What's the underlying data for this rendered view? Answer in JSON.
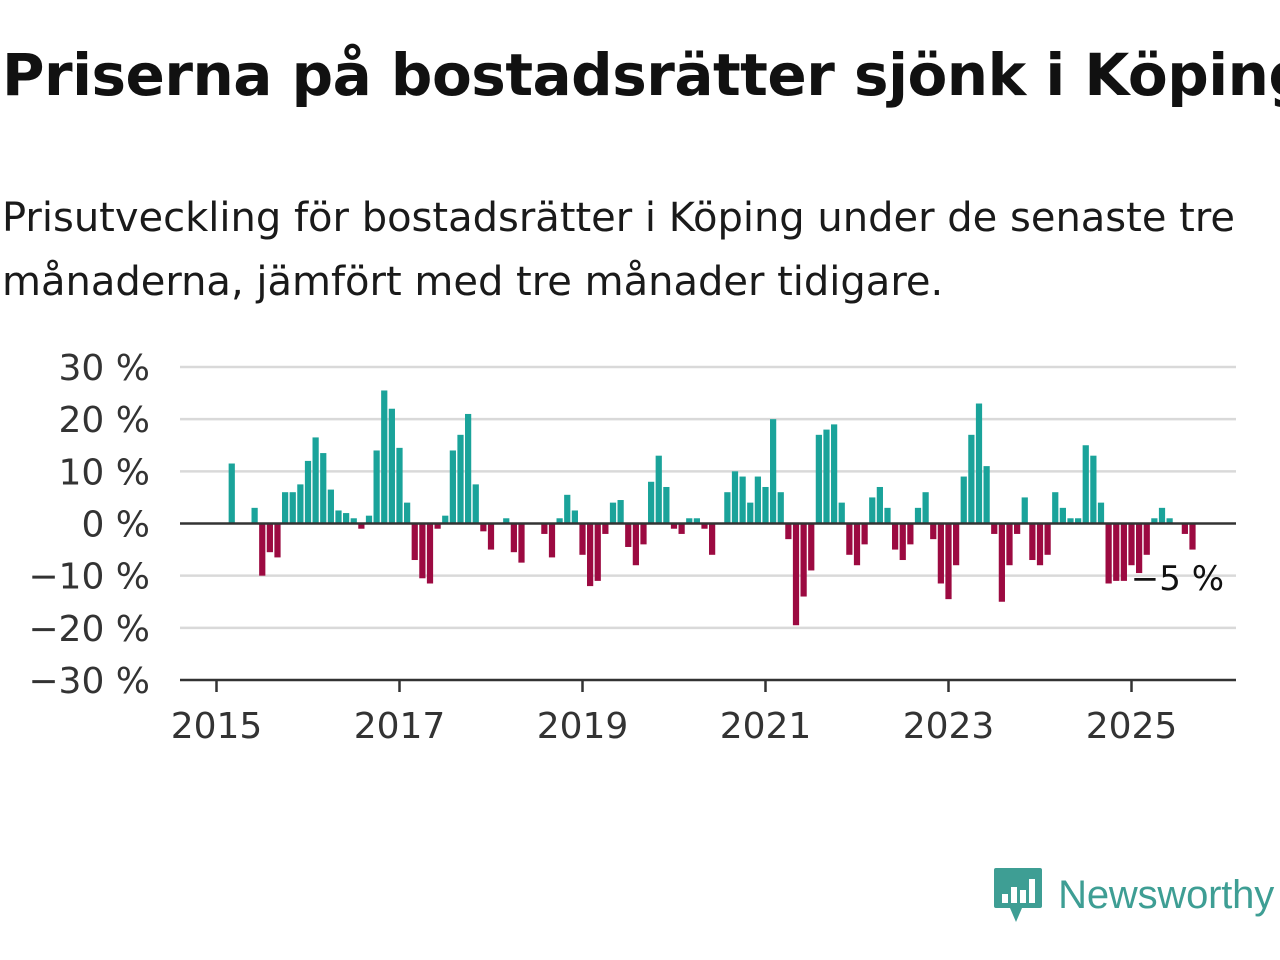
{
  "header": {
    "title": "Priserna på bostadsrätter sjönk i Köping",
    "subtitle": "Prisutveckling för bostadsrätter i Köping under de senaste tre månaderna, jämfört med tre månader tidigare."
  },
  "brand": {
    "name": "Newsworthy",
    "icon": "newsworthy-logo-icon",
    "color": "#3e9e94"
  },
  "chart_data": {
    "type": "bar",
    "title": "",
    "xlabel": "",
    "ylabel": "",
    "unit": "%",
    "ylim": [
      -30,
      30
    ],
    "yticks": [
      30,
      20,
      10,
      0,
      -10,
      -20,
      -30
    ],
    "ytick_labels": [
      "30 %",
      "20 %",
      "10 %",
      "0 %",
      "−10 %",
      "−20 %",
      "−30 %"
    ],
    "xticks": [
      "2015",
      "2017",
      "2019",
      "2021",
      "2023",
      "2025"
    ],
    "xlim": [
      "2015-01",
      "2026-01"
    ],
    "grid": true,
    "legend": "none",
    "colors": {
      "positive": "#1aa39a",
      "negative": "#9c0a41",
      "grid": "#d9d9d9",
      "axis": "#333333"
    },
    "last_value_label": "−5 %",
    "series": [
      {
        "x": [
          "2015-03",
          "2015-04",
          "2015-05",
          "2015-06",
          "2015-07",
          "2015-08",
          "2015-09",
          "2015-10",
          "2015-11",
          "2015-12",
          "2016-01",
          "2016-02",
          "2016-03",
          "2016-04",
          "2016-05",
          "2016-06",
          "2016-07",
          "2016-08",
          "2016-09",
          "2016-10",
          "2016-11",
          "2016-12",
          "2017-01",
          "2017-02",
          "2017-03",
          "2017-04",
          "2017-05",
          "2017-06",
          "2017-07",
          "2017-08",
          "2017-09",
          "2017-10",
          "2017-11",
          "2017-12",
          "2018-01",
          "2018-02",
          "2018-03",
          "2018-04",
          "2018-05",
          "2018-06",
          "2018-07",
          "2018-08",
          "2018-09",
          "2018-10",
          "2018-11",
          "2018-12",
          "2019-01",
          "2019-02",
          "2019-03",
          "2019-04",
          "2019-05",
          "2019-06",
          "2019-07",
          "2019-08",
          "2019-09",
          "2019-10",
          "2019-11",
          "2019-12",
          "2020-01",
          "2020-02",
          "2020-03",
          "2020-04",
          "2020-05",
          "2020-06",
          "2020-07",
          "2020-08",
          "2020-09",
          "2020-10",
          "2020-11",
          "2020-12",
          "2021-01",
          "2021-02",
          "2021-03",
          "2021-04",
          "2021-05",
          "2021-06",
          "2021-07",
          "2021-08",
          "2021-09",
          "2021-10",
          "2021-11",
          "2021-12",
          "2022-01",
          "2022-02",
          "2022-03",
          "2022-04",
          "2022-05",
          "2022-06",
          "2022-07",
          "2022-08",
          "2022-09",
          "2022-10",
          "2022-11",
          "2022-12",
          "2023-01",
          "2023-02",
          "2023-03",
          "2023-04",
          "2023-05",
          "2023-06",
          "2023-07",
          "2023-08",
          "2023-09",
          "2023-10",
          "2023-11",
          "2023-12",
          "2024-01",
          "2024-02",
          "2024-03",
          "2024-04",
          "2024-05",
          "2024-06",
          "2024-07",
          "2024-08",
          "2024-09",
          "2024-10",
          "2024-11",
          "2024-12",
          "2025-01",
          "2025-02",
          "2025-03",
          "2025-04",
          "2025-05",
          "2025-06",
          "2025-07",
          "2025-08",
          "2025-09"
        ],
        "values": [
          11.5,
          0,
          0,
          3,
          -10,
          -5.5,
          -6.5,
          6,
          6,
          7.5,
          12,
          16.5,
          13.5,
          6.5,
          2.5,
          2,
          1,
          -1,
          1.5,
          14,
          25.5,
          22,
          14.5,
          4,
          -7,
          -10.5,
          -11.5,
          -1,
          1.5,
          14,
          17,
          21,
          7.5,
          -1.5,
          -5,
          0,
          1,
          -5.5,
          -7.5,
          0,
          0,
          -2,
          -6.5,
          1,
          5.5,
          2.5,
          -6,
          -12,
          -11,
          -2,
          4,
          4.5,
          -4.5,
          -8,
          -4,
          8,
          13,
          7,
          -1,
          -2,
          1,
          1,
          -1,
          -6,
          0,
          6,
          10,
          9,
          4,
          9,
          7,
          20,
          6,
          -3,
          -19.5,
          -14,
          -9,
          17,
          18,
          19,
          4,
          -6,
          -8,
          -4,
          5,
          7,
          3,
          -5,
          -7,
          -4,
          3,
          6,
          -3,
          -11.5,
          -14.5,
          -8,
          9,
          17,
          23,
          11,
          -2,
          -15,
          -8,
          -2,
          5,
          -7,
          -8,
          -6,
          6,
          3,
          1,
          1,
          15,
          13,
          4,
          -11.5,
          -11,
          -11,
          -8,
          -9.5,
          -6,
          1,
          3,
          1,
          0,
          -2,
          -5
        ]
      }
    ]
  }
}
